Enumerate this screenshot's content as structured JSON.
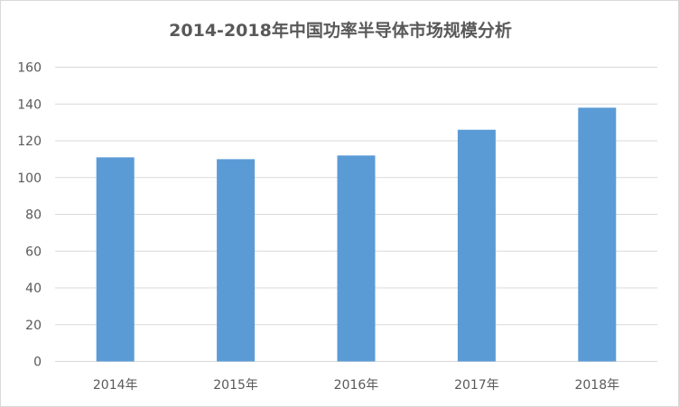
{
  "chart_data": {
    "type": "bar",
    "title": "2014-2018年中国功率半导体市场规模分析",
    "categories": [
      "2014年",
      "2015年",
      "2016年",
      "2017年",
      "2018年"
    ],
    "values": [
      111,
      110,
      112,
      126,
      138
    ],
    "xlabel": "",
    "ylabel": "",
    "ylim": [
      0,
      160
    ],
    "yticks": [
      "0",
      "20",
      "40",
      "60",
      "80",
      "100",
      "120",
      "140",
      "160"
    ],
    "grid": true,
    "legend": "none",
    "bar_color": "#5b9bd5"
  }
}
